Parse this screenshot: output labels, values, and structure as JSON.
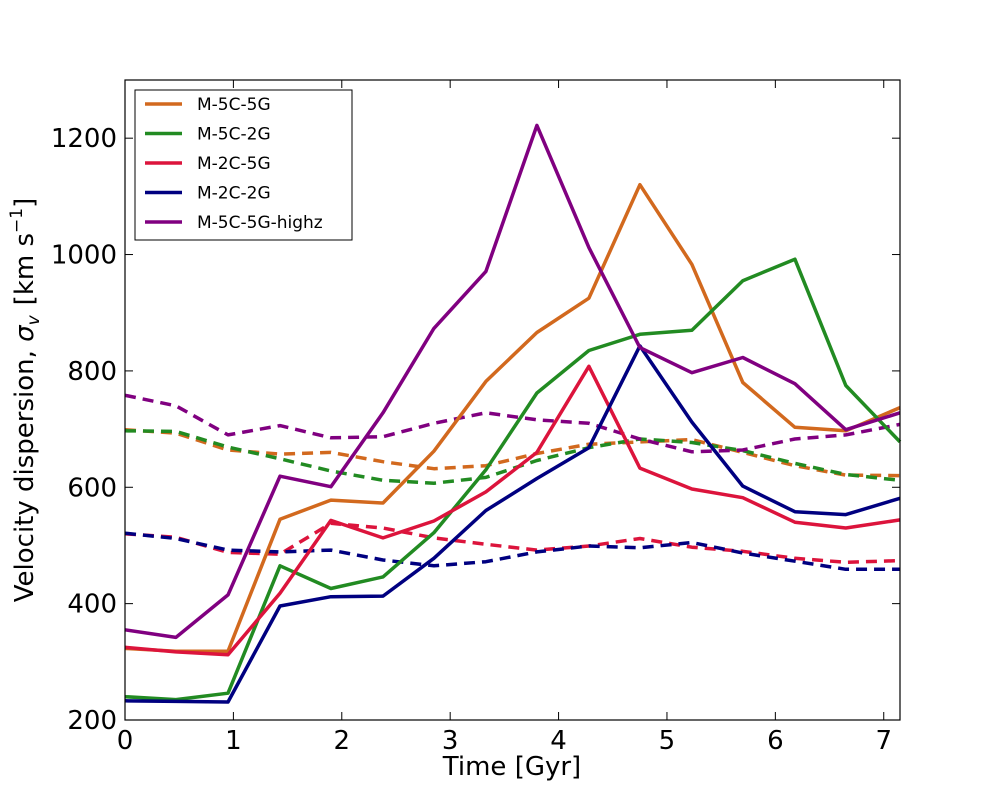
{
  "chart_data": {
    "type": "line",
    "title": "",
    "xlabel": "Time [Gyr]",
    "ylabel_main": "Velocity dispersion, ",
    "ylabel_symbol": "σ",
    "ylabel_subscript": "v",
    "ylabel_units": "[km s",
    "ylabel_exponent": "−1",
    "ylabel_close": "]",
    "xlim": [
      0,
      7.15
    ],
    "ylim": [
      200,
      1300
    ],
    "xticks": [
      0,
      1,
      2,
      3,
      4,
      5,
      6,
      7
    ],
    "yticks": [
      200,
      400,
      600,
      800,
      1000,
      1200
    ],
    "legend_position": "top-left",
    "x": [
      0,
      0.47,
      0.95,
      1.43,
      1.9,
      2.38,
      2.85,
      3.33,
      3.8,
      4.28,
      4.75,
      5.23,
      5.7,
      6.18,
      6.65,
      7.15
    ],
    "series": [
      {
        "name": "M-5C-5G",
        "color": "#d2691e",
        "style": "solid",
        "values": [
          323,
          318,
          318,
          545,
          578,
          573,
          662,
          782,
          866,
          925,
          1120,
          983,
          780,
          703,
          697,
          737
        ]
      },
      {
        "name": "M-5C-2G",
        "color": "#228b22",
        "style": "solid",
        "values": [
          240,
          235,
          246,
          465,
          426,
          446,
          522,
          630,
          762,
          835,
          863,
          870,
          955,
          992,
          775,
          678
        ]
      },
      {
        "name": "M-2C-5G",
        "color": "#dc143c",
        "style": "solid",
        "values": [
          325,
          317,
          312,
          418,
          543,
          513,
          542,
          592,
          660,
          808,
          633,
          597,
          582,
          540,
          530,
          544
        ]
      },
      {
        "name": "M-2C-2G",
        "color": "#000080",
        "style": "solid",
        "values": [
          233,
          232,
          231,
          396,
          412,
          413,
          478,
          560,
          615,
          668,
          843,
          712,
          602,
          558,
          553,
          581
        ]
      },
      {
        "name": "M-5C-5G-highz",
        "color": "#800080",
        "style": "solid",
        "values": [
          355,
          342,
          415,
          619,
          601,
          728,
          873,
          971,
          1222,
          1012,
          840,
          797,
          823,
          778,
          699,
          728
        ]
      },
      {
        "name": "M-5C-5G (dashed)",
        "color": "#d2691e",
        "style": "dashed",
        "values": [
          699,
          693,
          664,
          657,
          660,
          644,
          632,
          637,
          658,
          674,
          678,
          682,
          660,
          637,
          621,
          620
        ]
      },
      {
        "name": "M-5C-2G (dashed)",
        "color": "#228b22",
        "style": "dashed",
        "values": [
          697,
          696,
          669,
          649,
          628,
          612,
          607,
          617,
          646,
          668,
          683,
          677,
          663,
          641,
          622,
          612
        ]
      },
      {
        "name": "M-2C-5G (dashed)",
        "color": "#dc143c",
        "style": "dashed",
        "values": [
          520,
          514,
          488,
          485,
          538,
          530,
          513,
          502,
          492,
          499,
          512,
          497,
          490,
          478,
          471,
          474
        ]
      },
      {
        "name": "M-2C-2G (dashed)",
        "color": "#000080",
        "style": "dashed",
        "values": [
          521,
          512,
          492,
          489,
          492,
          475,
          465,
          472,
          489,
          499,
          496,
          505,
          487,
          473,
          459,
          459
        ]
      },
      {
        "name": "M-5C-5G-highz (dashed)",
        "color": "#800080",
        "style": "dashed",
        "values": [
          758,
          740,
          690,
          706,
          685,
          687,
          710,
          728,
          716,
          710,
          683,
          661,
          664,
          683,
          690,
          708
        ]
      }
    ],
    "legend": [
      "M-5C-5G",
      "M-5C-2G",
      "M-2C-5G",
      "M-2C-2G",
      "M-5C-5G-highz"
    ]
  }
}
